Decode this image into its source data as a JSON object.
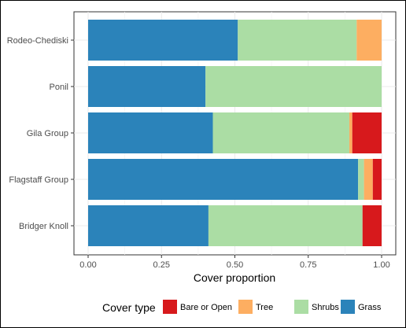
{
  "chart_data": {
    "type": "bar",
    "orientation": "horizontal",
    "stacked": true,
    "categories": [
      "Rodeo-Chediski",
      "Ponil",
      "Gila Group",
      "Flagstaff Group",
      "Bridger Knoll"
    ],
    "series": [
      {
        "name": "Grass",
        "color": "#2b83ba",
        "values": [
          0.51,
          0.4,
          0.425,
          0.92,
          0.41
        ]
      },
      {
        "name": "Shrubs",
        "color": "#abdda4",
        "values": [
          0.405,
          0.6,
          0.465,
          0.02,
          0.525
        ]
      },
      {
        "name": "Tree",
        "color": "#fdae61",
        "values": [
          0.085,
          0.0,
          0.01,
          0.03,
          0.0
        ]
      },
      {
        "name": "Bare or Open",
        "color": "#d7191c",
        "values": [
          0.0,
          0.0,
          0.1,
          0.03,
          0.065
        ]
      }
    ],
    "xlabel": "Cover proportion",
    "ylabel": "",
    "xlim": [
      0,
      1
    ],
    "xticks": [
      "0.00",
      "0.25",
      "0.50",
      "0.75",
      "1.00"
    ],
    "grid": true,
    "legend": {
      "title": "Cover type",
      "position": "bottom",
      "entries": [
        {
          "label": "Bare or Open",
          "color": "#d7191c"
        },
        {
          "label": "Tree",
          "color": "#fdae61"
        },
        {
          "label": "Shrubs",
          "color": "#abdda4"
        },
        {
          "label": "Grass",
          "color": "#2b83ba"
        }
      ]
    }
  }
}
